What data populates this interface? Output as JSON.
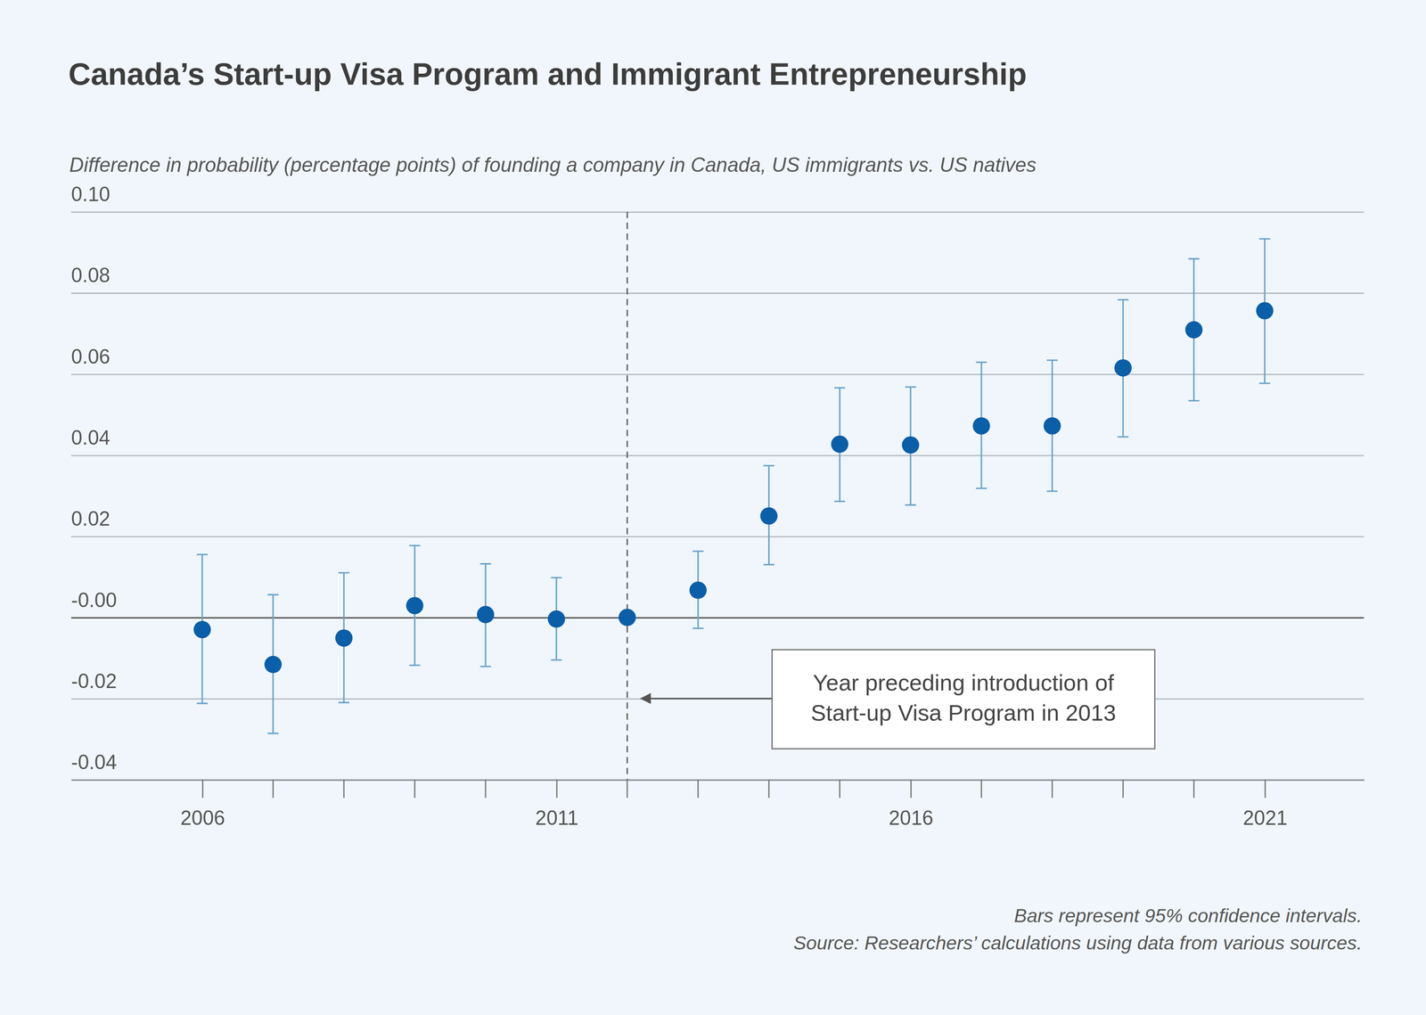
{
  "chart_data": {
    "type": "scatter",
    "title": "Canada’s Start-up Visa Program and Immigrant Entrepreneurship",
    "subtitle": "Difference in probability (percentage points) of founding a company in Canada, US immigrants vs. US natives",
    "x": [
      2006,
      2007,
      2008,
      2009,
      2010,
      2011,
      2012,
      2013,
      2014,
      2015,
      2016,
      2017,
      2018,
      2019,
      2020,
      2021
    ],
    "values": [
      -0.003,
      -0.0116,
      -0.0051,
      0.0029,
      0.0007,
      -0.0004,
      0,
      0.0067,
      0.025,
      0.0427,
      0.0425,
      0.0472,
      0.0472,
      0.0615,
      0.0709,
      0.0756
    ],
    "lower": [
      -0.0212,
      -0.0286,
      -0.021,
      -0.0118,
      -0.0121,
      -0.0105,
      null,
      -0.0027,
      0.013,
      0.0286,
      0.0277,
      0.0318,
      0.0311,
      0.0445,
      0.0534,
      0.0577
    ],
    "upper": [
      0.0155,
      0.0056,
      0.011,
      0.0177,
      0.0132,
      0.0098,
      null,
      0.0163,
      0.0374,
      0.0566,
      0.0568,
      0.0629,
      0.0634,
      0.0783,
      0.0884,
      0.0933
    ],
    "color": "#0b5ea8",
    "marker": "circle",
    "grid": true,
    "xlim": [
      2004.15,
      2022.4
    ],
    "xticks": [
      2006,
      2011,
      2016,
      2021
    ],
    "ylim": [
      -0.04,
      0.1
    ],
    "yticks": [
      {
        "value": 0.1,
        "label": "0.10"
      },
      0.08,
      0.06,
      0.04,
      0.02,
      {
        "value": 0,
        "label": "-0.00"
      },
      -0.02,
      -0.04
    ],
    "annotation": {
      "lines": [
        "Year preceding introduction of",
        "Start-up Visa Program in 2013"
      ],
      "x": 2012,
      "y": -0.02
    },
    "notes": [
      "Bars represent 95% confidence intervals.",
      "Source: Researchers’ calculations using data from various sources."
    ]
  }
}
